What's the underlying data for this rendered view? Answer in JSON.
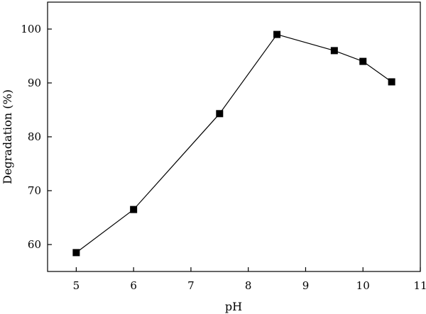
{
  "chart_data": {
    "type": "line",
    "title": "",
    "xlabel": "pH",
    "ylabel": "Degradation (%)",
    "xlim": [
      4.5,
      11
    ],
    "ylim": [
      55,
      105
    ],
    "xticks": [
      5,
      6,
      7,
      8,
      9,
      10,
      11
    ],
    "yticks": [
      60,
      70,
      80,
      90,
      100
    ],
    "grid": false,
    "legend": "none",
    "marker": "square",
    "color": "#000000",
    "series": [
      {
        "x": [
          5,
          6,
          7.5,
          8.5,
          9.5,
          10,
          10.5
        ],
        "y": [
          58.5,
          66.5,
          84.3,
          99,
          96,
          94,
          90.2
        ]
      }
    ]
  }
}
